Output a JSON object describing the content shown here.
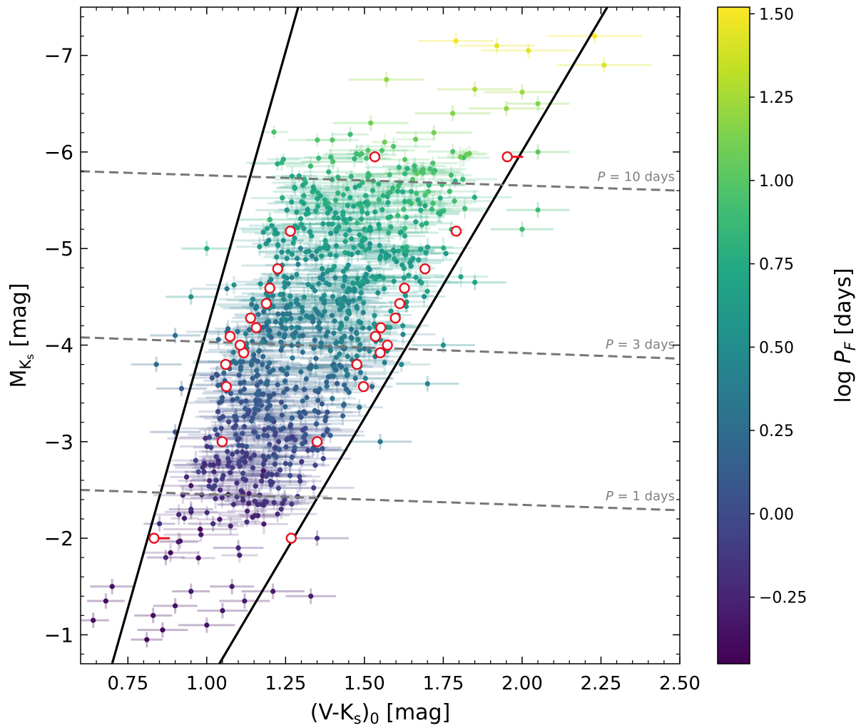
{
  "chart_data": {
    "type": "scatter",
    "title": "",
    "xlabel": "(V-K",
    "xlabel_sub": "s",
    "xlabel_post": ")",
    "xlabel_sub0": "0",
    "xlabel_unit": " [mag]",
    "ylabel": "M",
    "ylabel_sub": "K",
    "ylabel_subsub": "s",
    "ylabel_unit": " [mag]",
    "xlim": [
      0.6,
      2.5
    ],
    "ylim": [
      -0.7,
      -7.5
    ],
    "y_inverted": true,
    "x_ticks": [
      "0.75",
      "1.00",
      "1.25",
      "1.50",
      "1.75",
      "2.00",
      "2.25",
      "2.50"
    ],
    "x_tick_values": [
      0.75,
      1.0,
      1.25,
      1.5,
      1.75,
      2.0,
      2.25,
      2.5
    ],
    "y_ticks": [
      "−1",
      "−2",
      "−3",
      "−4",
      "−5",
      "−6",
      "−7"
    ],
    "y_tick_values": [
      -1,
      -2,
      -3,
      -4,
      -5,
      -6,
      -7
    ],
    "colorbar": {
      "label_prefix": "log ",
      "label_var": "P",
      "label_sub": "F",
      "label_unit": " [days]",
      "range": [
        -0.45,
        1.52
      ],
      "ticks": [
        "−0.25",
        "0.00",
        "0.25",
        "0.50",
        "0.75",
        "1.00",
        "1.25",
        "1.50"
      ],
      "tick_values": [
        -0.25,
        0.0,
        0.25,
        0.5,
        0.75,
        1.0,
        1.25,
        1.5
      ]
    },
    "instability_strip_edges": [
      {
        "name": "blue edge",
        "points": [
          [
            0.7,
            -0.7
          ],
          [
            1.29,
            -7.5
          ]
        ]
      },
      {
        "name": "red edge",
        "points": [
          [
            1.04,
            -0.7
          ],
          [
            2.27,
            -7.5
          ]
        ]
      }
    ],
    "period_lines": [
      {
        "label": "P = 10 days",
        "label_var": "P",
        "label_rest": " = 10 days",
        "points": [
          [
            0.6,
            -5.8
          ],
          [
            2.5,
            -5.6
          ]
        ]
      },
      {
        "label": "P = 3 days",
        "label_var": "P",
        "label_rest": " = 3 days",
        "points": [
          [
            0.6,
            -4.08
          ],
          [
            2.5,
            -3.86
          ]
        ]
      },
      {
        "label": "P = 1 days",
        "label_var": "P",
        "label_rest": " = 1 days",
        "points": [
          [
            0.6,
            -2.5
          ],
          [
            2.5,
            -2.29
          ]
        ]
      }
    ],
    "red_markers": [
      {
        "x": 0.833,
        "y": -2.0,
        "xerr": 0.05
      },
      {
        "x": 1.268,
        "y": -2.0,
        "xerr": 0.0
      },
      {
        "x": 1.049,
        "y": -3.0,
        "xerr": 0.0
      },
      {
        "x": 1.35,
        "y": -3.0,
        "xerr": 0.0
      },
      {
        "x": 1.062,
        "y": -3.57,
        "xerr": 0.0
      },
      {
        "x": 1.06,
        "y": -3.8,
        "xerr": 0.0
      },
      {
        "x": 1.117,
        "y": -3.92,
        "xerr": 0.0
      },
      {
        "x": 1.106,
        "y": -4.0,
        "xerr": 0.0
      },
      {
        "x": 1.074,
        "y": -4.09,
        "xerr": 0.015
      },
      {
        "x": 1.157,
        "y": -4.18,
        "xerr": 0.0
      },
      {
        "x": 1.139,
        "y": -4.28,
        "xerr": 0.0
      },
      {
        "x": 1.189,
        "y": -4.43,
        "xerr": 0.01
      },
      {
        "x": 1.2,
        "y": -4.59,
        "xerr": 0.0
      },
      {
        "x": 1.225,
        "y": -4.79,
        "xerr": 0.0
      },
      {
        "x": 1.265,
        "y": -5.18,
        "xerr": 0.0
      },
      {
        "x": 1.533,
        "y": -5.95,
        "xerr": 0.015
      },
      {
        "x": 1.497,
        "y": -3.57,
        "xerr": 0.015
      },
      {
        "x": 1.476,
        "y": -3.8,
        "xerr": 0.0
      },
      {
        "x": 1.55,
        "y": -3.92,
        "xerr": 0.015
      },
      {
        "x": 1.573,
        "y": -4.0,
        "xerr": 0.0
      },
      {
        "x": 1.535,
        "y": -4.09,
        "xerr": 0.0
      },
      {
        "x": 1.552,
        "y": -4.18,
        "xerr": 0.0
      },
      {
        "x": 1.598,
        "y": -4.28,
        "xerr": 0.0
      },
      {
        "x": 1.612,
        "y": -4.43,
        "xerr": 0.02
      },
      {
        "x": 1.627,
        "y": -4.59,
        "xerr": 0.0
      },
      {
        "x": 1.692,
        "y": -4.79,
        "xerr": 0.01
      },
      {
        "x": 1.791,
        "y": -5.18,
        "xerr": 0.0
      },
      {
        "x": 1.953,
        "y": -5.95,
        "xerr": 0.05
      }
    ],
    "scatter_points": [
      {
        "x": 0.64,
        "y": -1.15,
        "xerr": 0.05,
        "c": -0.4
      },
      {
        "x": 0.68,
        "y": -1.35,
        "xerr": 0.06,
        "c": -0.38
      },
      {
        "x": 0.7,
        "y": -1.5,
        "xerr": 0.07,
        "c": -0.37
      },
      {
        "x": 0.81,
        "y": -0.95,
        "xerr": 0.05,
        "c": -0.42
      },
      {
        "x": 0.83,
        "y": -1.2,
        "xerr": 0.06,
        "c": -0.39
      },
      {
        "x": 0.86,
        "y": -1.05,
        "xerr": 0.08,
        "c": -0.4
      },
      {
        "x": 0.9,
        "y": -1.3,
        "xerr": 0.07,
        "c": -0.36
      },
      {
        "x": 0.95,
        "y": -1.45,
        "xerr": 0.06,
        "c": -0.33
      },
      {
        "x": 1.0,
        "y": -1.1,
        "xerr": 0.09,
        "c": -0.36
      },
      {
        "x": 1.05,
        "y": -1.25,
        "xerr": 0.08,
        "c": -0.34
      },
      {
        "x": 1.08,
        "y": -1.5,
        "xerr": 0.07,
        "c": -0.3
      },
      {
        "x": 1.12,
        "y": -1.35,
        "xerr": 0.08,
        "c": -0.32
      },
      {
        "x": 1.21,
        "y": -1.45,
        "xerr": 0.1,
        "c": -0.3
      },
      {
        "x": 1.33,
        "y": -1.4,
        "xerr": 0.08,
        "c": -0.28
      },
      {
        "x": 0.85,
        "y": -2.15,
        "xerr": 0.05,
        "c": -0.2
      },
      {
        "x": 0.87,
        "y": -1.8,
        "xerr": 0.06,
        "c": -0.25
      },
      {
        "x": 0.95,
        "y": -2.3,
        "xerr": 0.07,
        "c": -0.18
      },
      {
        "x": 1.02,
        "y": -2.15,
        "xerr": 0.08,
        "c": -0.2
      },
      {
        "x": 1.1,
        "y": -1.9,
        "xerr": 0.08,
        "c": -0.22
      },
      {
        "x": 1.35,
        "y": -2.0,
        "xerr": 0.1,
        "c": -0.18
      },
      {
        "x": 1.03,
        "y": -2.6,
        "xerr": 0.08,
        "c": -0.1
      },
      {
        "x": 0.9,
        "y": -3.1,
        "xerr": 0.08,
        "c": 0.05
      },
      {
        "x": 0.92,
        "y": -3.55,
        "xerr": 0.08,
        "c": 0.12
      },
      {
        "x": 0.9,
        "y": -4.1,
        "xerr": 0.08,
        "c": 0.25
      },
      {
        "x": 0.84,
        "y": -3.8,
        "xerr": 0.08,
        "c": 0.22
      },
      {
        "x": 1.57,
        "y": -6.75,
        "xerr": 0.12,
        "c": 1.2
      },
      {
        "x": 1.79,
        "y": -7.15,
        "xerr": 0.12,
        "c": 1.48
      },
      {
        "x": 1.92,
        "y": -7.1,
        "xerr": 0.12,
        "c": 1.45
      },
      {
        "x": 2.02,
        "y": -7.05,
        "xerr": 0.15,
        "c": 1.44
      },
      {
        "x": 2.23,
        "y": -7.2,
        "xerr": 0.15,
        "c": 1.5
      },
      {
        "x": 2.26,
        "y": -6.9,
        "xerr": 0.15,
        "c": 1.42
      },
      {
        "x": 1.85,
        "y": -6.65,
        "xerr": 0.12,
        "c": 1.25
      },
      {
        "x": 1.95,
        "y": -6.45,
        "xerr": 0.12,
        "c": 1.2
      },
      {
        "x": 2.0,
        "y": -6.62,
        "xerr": 0.12,
        "c": 1.23
      },
      {
        "x": 1.78,
        "y": -6.4,
        "xerr": 0.12,
        "c": 1.15
      },
      {
        "x": 1.72,
        "y": -6.2,
        "xerr": 0.12,
        "c": 1.1
      },
      {
        "x": 2.05,
        "y": -6.0,
        "xerr": 0.1,
        "c": 1.02
      },
      {
        "x": 2.05,
        "y": -6.5,
        "xerr": 0.1,
        "c": 1.15
      },
      {
        "x": 2.05,
        "y": -5.4,
        "xerr": 0.1,
        "c": 0.9
      },
      {
        "x": 2.0,
        "y": -5.2,
        "xerr": 0.1,
        "c": 0.88
      },
      {
        "x": 1.85,
        "y": -4.65,
        "xerr": 0.1,
        "c": 0.7
      },
      {
        "x": 1.75,
        "y": -4.0,
        "xerr": 0.1,
        "c": 0.55
      },
      {
        "x": 1.7,
        "y": -3.6,
        "xerr": 0.1,
        "c": 0.45
      },
      {
        "x": 1.55,
        "y": -3.0,
        "xerr": 0.1,
        "c": 0.3
      },
      {
        "x": 1.52,
        "y": -6.3,
        "xerr": 0.12,
        "c": 1.1
      },
      {
        "x": 1.4,
        "y": -5.9,
        "xerr": 0.1,
        "c": 0.95
      },
      {
        "x": 1.2,
        "y": -5.3,
        "xerr": 0.1,
        "c": 0.85
      },
      {
        "x": 1.0,
        "y": -5.0,
        "xerr": 0.08,
        "c": 0.75
      },
      {
        "x": 0.95,
        "y": -4.5,
        "xerr": 0.08,
        "c": 0.55
      }
    ],
    "cloud_density": 900
  }
}
